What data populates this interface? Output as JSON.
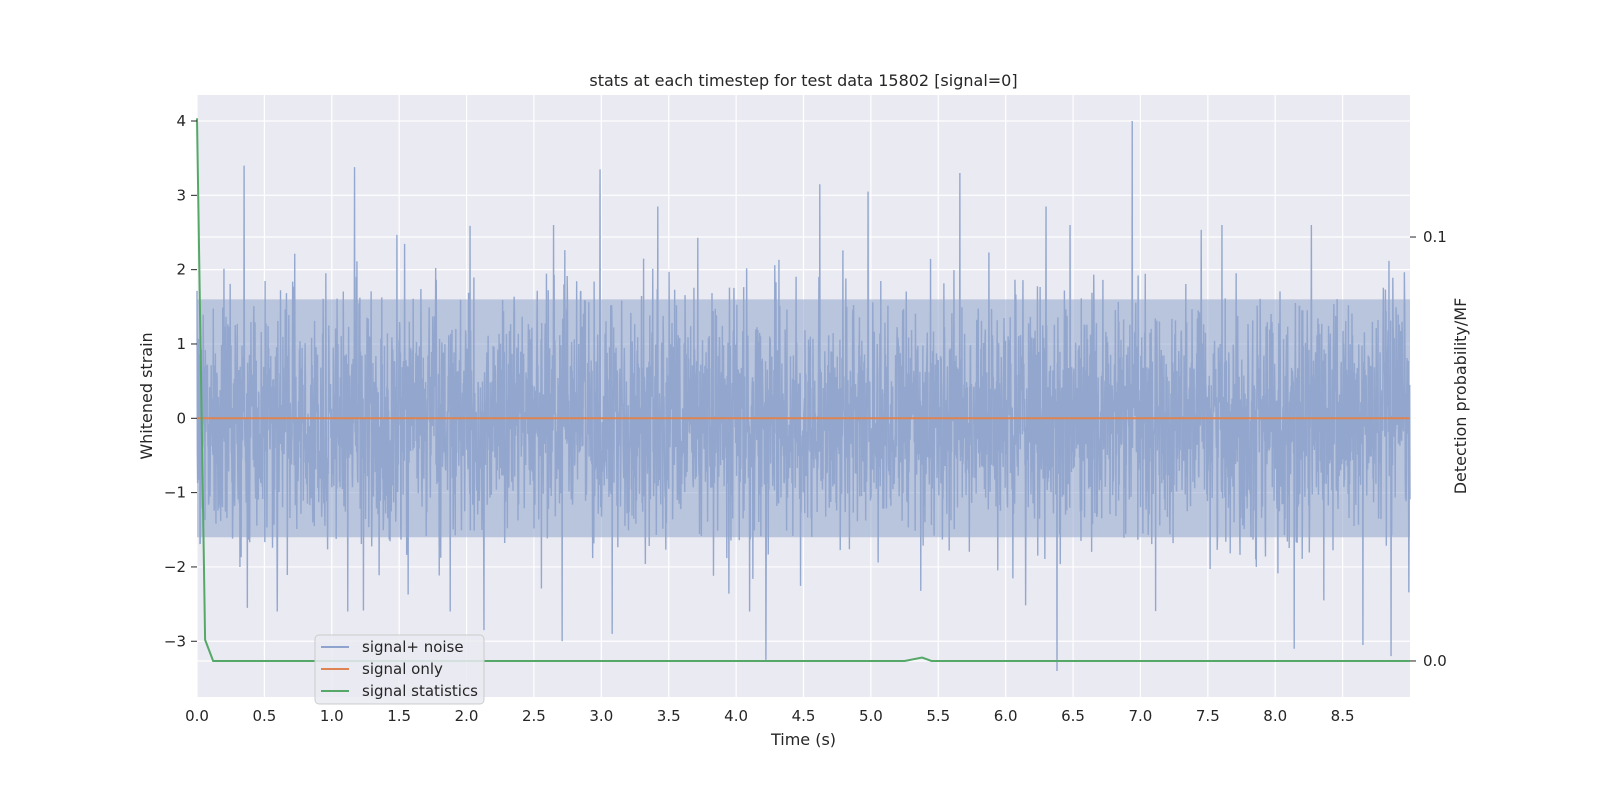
{
  "chart_data": {
    "type": "line",
    "title": "stats at each timestep for test data 15802 [signal=0]",
    "xlabel": "Time (s)",
    "ylabel": "Whitened strain",
    "ylabel_right": "Detection probability/MF",
    "xlim": [
      0.0,
      9.0
    ],
    "ylim": [
      -3.75,
      4.35
    ],
    "ylim_right": [
      -0.0085,
      0.1335
    ],
    "x_ticks": [
      0.0,
      0.5,
      1.0,
      1.5,
      2.0,
      2.5,
      3.0,
      3.5,
      4.0,
      4.5,
      5.0,
      5.5,
      6.0,
      6.5,
      7.0,
      7.5,
      8.0,
      8.5
    ],
    "x_tick_labels": [
      "0.0",
      "0.5",
      "1.0",
      "1.5",
      "2.0",
      "2.5",
      "3.0",
      "3.5",
      "4.0",
      "4.5",
      "5.0",
      "5.5",
      "6.0",
      "6.5",
      "7.0",
      "7.5",
      "8.0",
      "8.5"
    ],
    "y_ticks": [
      -3,
      -2,
      -1,
      0,
      1,
      2,
      3,
      4
    ],
    "y_tick_labels": [
      "−3",
      "−2",
      "−1",
      "0",
      "1",
      "2",
      "3",
      "4"
    ],
    "y_ticks_right": [
      0.0,
      0.1
    ],
    "y_tick_labels_right": [
      "0.0",
      "0.1"
    ],
    "grid": true,
    "legend_position": "lower-left",
    "series": [
      {
        "name": "signal+ noise",
        "axis": "left",
        "color": "#8fa4cc",
        "kind": "noise",
        "band": [
          -1.6,
          1.6
        ],
        "peaks": [
          {
            "x": 0.35,
            "y": 3.4
          },
          {
            "x": 1.17,
            "y": 3.38
          },
          {
            "x": 2.99,
            "y": 3.35
          },
          {
            "x": 5.66,
            "y": 3.3
          },
          {
            "x": 6.94,
            "y": 4.0
          },
          {
            "x": 4.62,
            "y": 3.15
          },
          {
            "x": 4.98,
            "y": 3.05
          },
          {
            "x": 3.42,
            "y": 2.85
          },
          {
            "x": 6.3,
            "y": 2.85
          },
          {
            "x": 6.38,
            "y": -3.4
          },
          {
            "x": 4.22,
            "y": -3.25
          },
          {
            "x": 2.71,
            "y": -3.0
          },
          {
            "x": 8.14,
            "y": -3.1
          },
          {
            "x": 8.86,
            "y": -3.2
          },
          {
            "x": 8.65,
            "y": -3.05
          },
          {
            "x": 2.13,
            "y": -2.85
          },
          {
            "x": 3.08,
            "y": -2.9
          },
          {
            "x": 4.1,
            "y": -2.6
          }
        ]
      },
      {
        "name": "signal only",
        "axis": "left",
        "color": "#dd8452",
        "x": [
          0.0,
          9.0
        ],
        "y": [
          0.0,
          0.0
        ]
      },
      {
        "name": "signal statistics",
        "axis": "right",
        "color": "#55a868",
        "x": [
          0.0,
          0.06,
          0.12,
          5.0,
          5.25,
          5.38,
          5.45,
          9.0
        ],
        "y": [
          0.128,
          0.005,
          0.0,
          0.0,
          0.0,
          0.0008,
          0.0,
          0.0
        ]
      }
    ]
  }
}
